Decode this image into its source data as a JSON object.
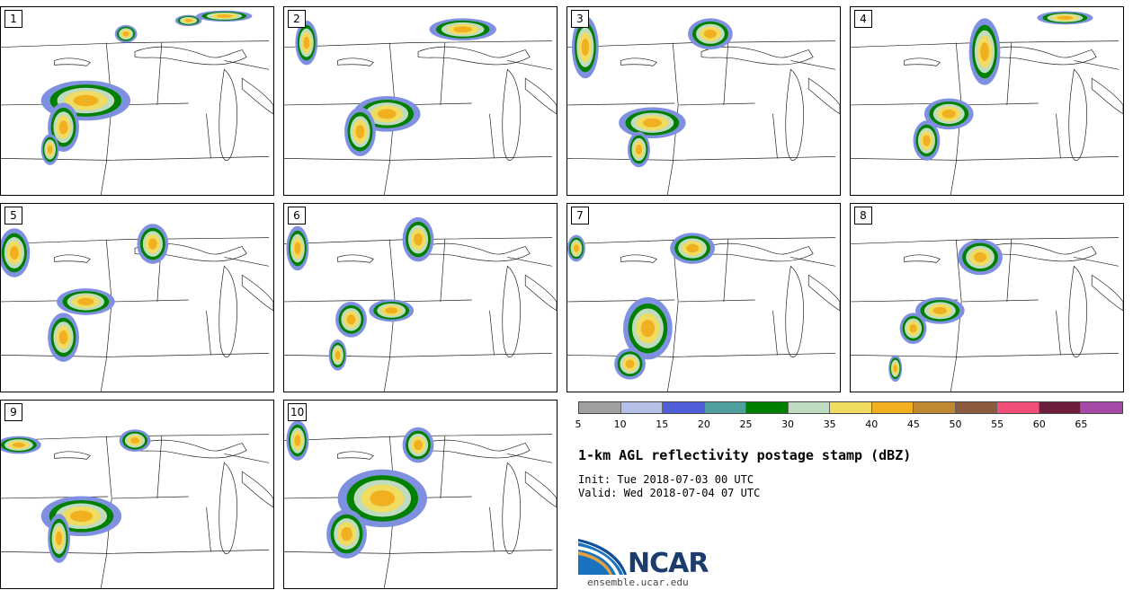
{
  "panels": [
    {
      "label": "1"
    },
    {
      "label": "2"
    },
    {
      "label": "3"
    },
    {
      "label": "4"
    },
    {
      "label": "5"
    },
    {
      "label": "6"
    },
    {
      "label": "7"
    },
    {
      "label": "8"
    },
    {
      "label": "9"
    },
    {
      "label": "10"
    }
  ],
  "legend": {
    "ticks": [
      "5",
      "10",
      "15",
      "20",
      "25",
      "30",
      "35",
      "40",
      "45",
      "50",
      "55",
      "60",
      "65"
    ],
    "colors": [
      "#a0a0a0",
      "#b4c0e8",
      "#5060d8",
      "#50a0a0",
      "#008000",
      "#c0dcc0",
      "#f0dc60",
      "#f0b020",
      "#c08830",
      "#8c5a3c",
      "#f05078",
      "#6e1e3c",
      "#a84aa8"
    ]
  },
  "title": "1-km AGL reflectivity postage stamp (dBZ)",
  "init": "Init: Tue 2018-07-03 00 UTC",
  "valid": "Valid: Wed 2018-07-04 07 UTC",
  "logo": {
    "text": "NCAR",
    "url": "ensemble.ucar.edu"
  }
}
